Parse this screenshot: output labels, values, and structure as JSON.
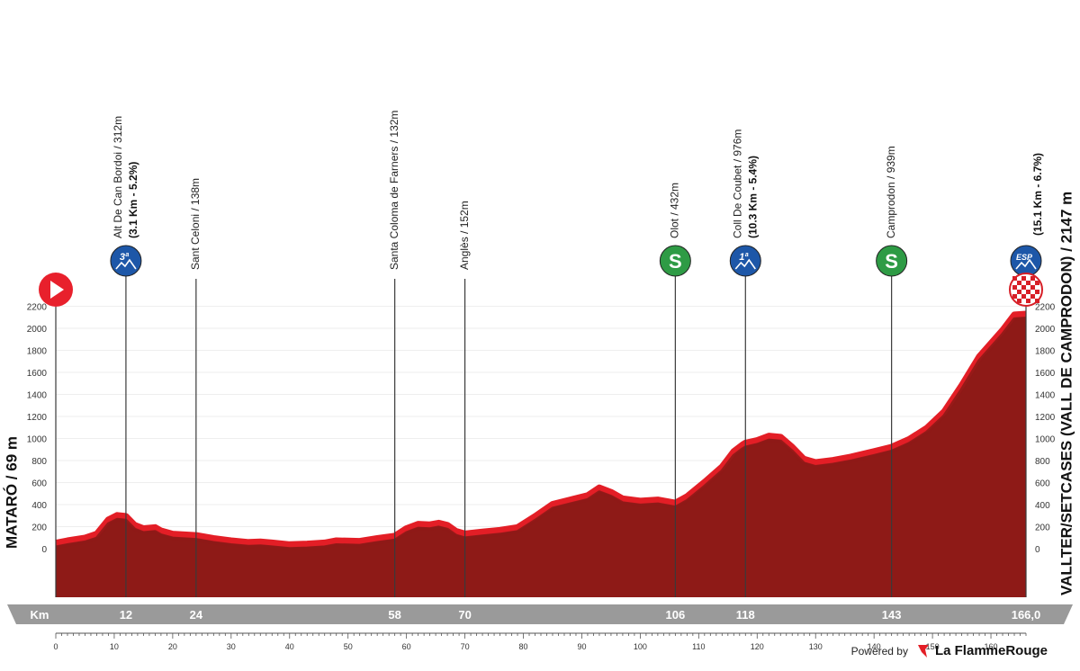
{
  "chart_data": {
    "type": "area",
    "x_unit": "km",
    "y_unit": "m",
    "xlim": [
      0,
      166
    ],
    "ylim": [
      -200,
      2300
    ],
    "y_ticks": [
      0,
      200,
      400,
      600,
      800,
      1000,
      1200,
      1400,
      1600,
      1800,
      2000,
      2200
    ],
    "x_ticks": [
      0,
      10,
      20,
      30,
      40,
      50,
      60,
      70,
      80,
      90,
      100,
      110,
      120,
      130,
      140,
      150,
      160
    ],
    "start_label": "MATARÓ / 69 m",
    "finish_label": "VALLTER/SETCASES (VALL DE CAMPRODON) / 2147 m",
    "km_label": "Km",
    "km_markers": [
      {
        "km": 12,
        "label": "12"
      },
      {
        "km": 24,
        "label": "24"
      },
      {
        "km": 58,
        "label": "58"
      },
      {
        "km": 70,
        "label": "70"
      },
      {
        "km": 106,
        "label": "106"
      },
      {
        "km": 118,
        "label": "118"
      },
      {
        "km": 143,
        "label": "143"
      },
      {
        "km": 166,
        "label": "166,0"
      }
    ],
    "profile": [
      [
        0,
        69
      ],
      [
        2,
        90
      ],
      [
        5,
        115
      ],
      [
        7,
        150
      ],
      [
        9,
        280
      ],
      [
        10.5,
        320
      ],
      [
        12,
        312
      ],
      [
        13.5,
        230
      ],
      [
        15,
        200
      ],
      [
        17,
        210
      ],
      [
        18,
        180
      ],
      [
        20,
        150
      ],
      [
        24,
        138
      ],
      [
        27,
        110
      ],
      [
        30,
        90
      ],
      [
        33,
        75
      ],
      [
        35,
        80
      ],
      [
        37,
        70
      ],
      [
        40,
        55
      ],
      [
        43,
        60
      ],
      [
        46,
        70
      ],
      [
        48,
        90
      ],
      [
        52,
        85
      ],
      [
        55,
        110
      ],
      [
        57,
        125
      ],
      [
        58,
        132
      ],
      [
        60,
        200
      ],
      [
        62,
        240
      ],
      [
        64,
        235
      ],
      [
        65.5,
        250
      ],
      [
        67,
        230
      ],
      [
        68.5,
        175
      ],
      [
        70,
        152
      ],
      [
        73,
        170
      ],
      [
        76,
        185
      ],
      [
        79,
        210
      ],
      [
        82,
        310
      ],
      [
        85,
        420
      ],
      [
        88,
        460
      ],
      [
        91,
        500
      ],
      [
        93,
        570
      ],
      [
        95,
        530
      ],
      [
        97,
        470
      ],
      [
        100,
        450
      ],
      [
        103,
        460
      ],
      [
        106,
        432
      ],
      [
        108,
        490
      ],
      [
        111,
        620
      ],
      [
        114,
        760
      ],
      [
        116,
        900
      ],
      [
        117.5,
        960
      ],
      [
        118,
        976
      ],
      [
        120,
        1000
      ],
      [
        122,
        1040
      ],
      [
        124,
        1030
      ],
      [
        126,
        940
      ],
      [
        128,
        830
      ],
      [
        130,
        800
      ],
      [
        133,
        820
      ],
      [
        136,
        850
      ],
      [
        140,
        900
      ],
      [
        143,
        939
      ],
      [
        146,
        1010
      ],
      [
        149,
        1110
      ],
      [
        152,
        1260
      ],
      [
        155,
        1500
      ],
      [
        158,
        1760
      ],
      [
        160,
        1880
      ],
      [
        162,
        2000
      ],
      [
        164,
        2140
      ],
      [
        166,
        2147
      ]
    ],
    "points": [
      {
        "km": 0,
        "name": "",
        "icon": "start-icon",
        "color": "#e8202c"
      },
      {
        "km": 12,
        "name": "Alt De Can Bordoi / 312m",
        "detail": "(3.1 Km - 5.2%)",
        "icon": "mountain-3a-icon",
        "badge": "3ª",
        "color": "#1d57a8"
      },
      {
        "km": 24,
        "name": "Sant Celoni / 138m",
        "detail": "",
        "icon": "",
        "color": ""
      },
      {
        "km": 58,
        "name": "Santa Coloma de Farners / 132m",
        "detail": "",
        "icon": "",
        "color": ""
      },
      {
        "km": 70,
        "name": "Anglès / 152m",
        "detail": "",
        "icon": "",
        "color": ""
      },
      {
        "km": 106,
        "name": "Olot / 432m",
        "detail": "",
        "icon": "sprint-icon",
        "badge": "S",
        "color": "#2e9b45"
      },
      {
        "km": 118,
        "name": "Coll De Coubet / 976m",
        "detail": "(10.3 Km - 5.4%)",
        "icon": "mountain-1a-icon",
        "badge": "1ª",
        "color": "#1d57a8"
      },
      {
        "km": 143,
        "name": "Camprodon / 939m",
        "detail": "",
        "icon": "sprint-icon",
        "badge": "S",
        "color": "#2e9b45"
      },
      {
        "km": 166,
        "name": "",
        "detail": "(15.1 Km - 6.7%)",
        "icon": "mountain-esp-icon",
        "badge": "ESP",
        "color": "#1d57a8"
      }
    ],
    "colors": {
      "fill": "#8e1a17",
      "edge": "#e31e26",
      "bar": "#9a9a9a",
      "mountain": "#1d57a8",
      "sprint": "#2e9b45",
      "start": "#e8202c"
    }
  },
  "footer": {
    "powered_by": "Powered by",
    "brand": "La FlammeRouge"
  }
}
